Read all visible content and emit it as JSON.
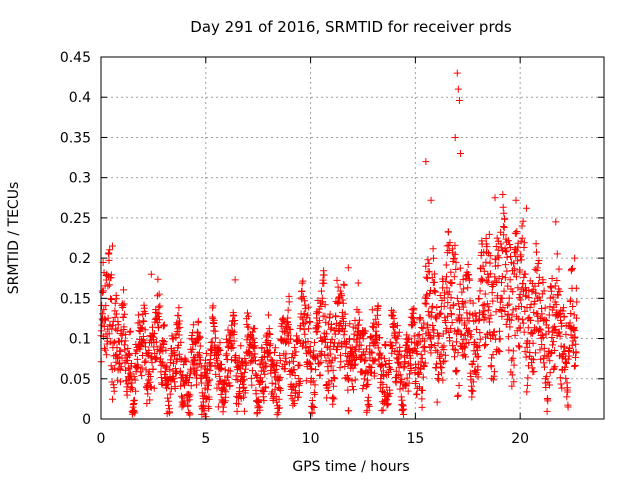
{
  "chart_data": {
    "type": "scatter",
    "title": "Day 291 of 2016, SRMTID for receiver prds",
    "xlabel": "GPS time / hours",
    "ylabel": "SRMTID / TECUs",
    "xlim": [
      0,
      24
    ],
    "ylim": [
      0,
      0.45
    ],
    "x_ticks": [
      0,
      5,
      10,
      15,
      20
    ],
    "x_tick_labels": [
      "0",
      "5",
      "10",
      "15",
      "20"
    ],
    "y_ticks": [
      0,
      0.05,
      0.1,
      0.15,
      0.2,
      0.25,
      0.3,
      0.35,
      0.4,
      0.45
    ],
    "y_tick_labels": [
      "0",
      "0.05",
      "0.1",
      "0.15",
      "0.2",
      "0.25",
      "0.3",
      "0.35",
      "0.4",
      "0.45"
    ],
    "grid": true,
    "marker": "+",
    "color": "#ff0000",
    "series": [
      {
        "name": "SRMTID",
        "x_range": [
          0,
          22.7
        ],
        "n_points": 2200,
        "level_profile": [
          [
            0.0,
            0.1
          ],
          [
            0.5,
            0.13
          ],
          [
            1.0,
            0.08
          ],
          [
            2.0,
            0.07
          ],
          [
            2.5,
            0.1
          ],
          [
            3.0,
            0.07
          ],
          [
            4.0,
            0.06
          ],
          [
            5.0,
            0.06
          ],
          [
            6.5,
            0.07
          ],
          [
            8.0,
            0.06
          ],
          [
            9.0,
            0.08
          ],
          [
            10.0,
            0.09
          ],
          [
            11.5,
            0.1
          ],
          [
            12.5,
            0.08
          ],
          [
            13.5,
            0.07
          ],
          [
            15.0,
            0.07
          ],
          [
            15.5,
            0.12
          ],
          [
            16.0,
            0.12
          ],
          [
            17.0,
            0.15
          ],
          [
            17.5,
            0.1
          ],
          [
            18.5,
            0.15
          ],
          [
            19.5,
            0.16
          ],
          [
            20.5,
            0.13
          ],
          [
            21.5,
            0.11
          ],
          [
            22.7,
            0.1
          ]
        ],
        "notable_points": [
          {
            "x": 0.55,
            "y": 0.215
          },
          {
            "x": 2.4,
            "y": 0.18
          },
          {
            "x": 6.4,
            "y": 0.173
          },
          {
            "x": 11.8,
            "y": 0.188
          },
          {
            "x": 15.5,
            "y": 0.32
          },
          {
            "x": 15.75,
            "y": 0.272
          },
          {
            "x": 16.9,
            "y": 0.35
          },
          {
            "x": 17.0,
            "y": 0.43
          },
          {
            "x": 17.05,
            "y": 0.41
          },
          {
            "x": 17.1,
            "y": 0.396
          },
          {
            "x": 17.15,
            "y": 0.33
          },
          {
            "x": 18.8,
            "y": 0.275
          },
          {
            "x": 19.8,
            "y": 0.272
          },
          {
            "x": 20.3,
            "y": 0.262
          },
          {
            "x": 21.7,
            "y": 0.245
          },
          {
            "x": 22.6,
            "y": 0.2
          },
          {
            "x": 5.0,
            "y": 0.003
          },
          {
            "x": 5.6,
            "y": 0.015
          }
        ]
      }
    ]
  }
}
